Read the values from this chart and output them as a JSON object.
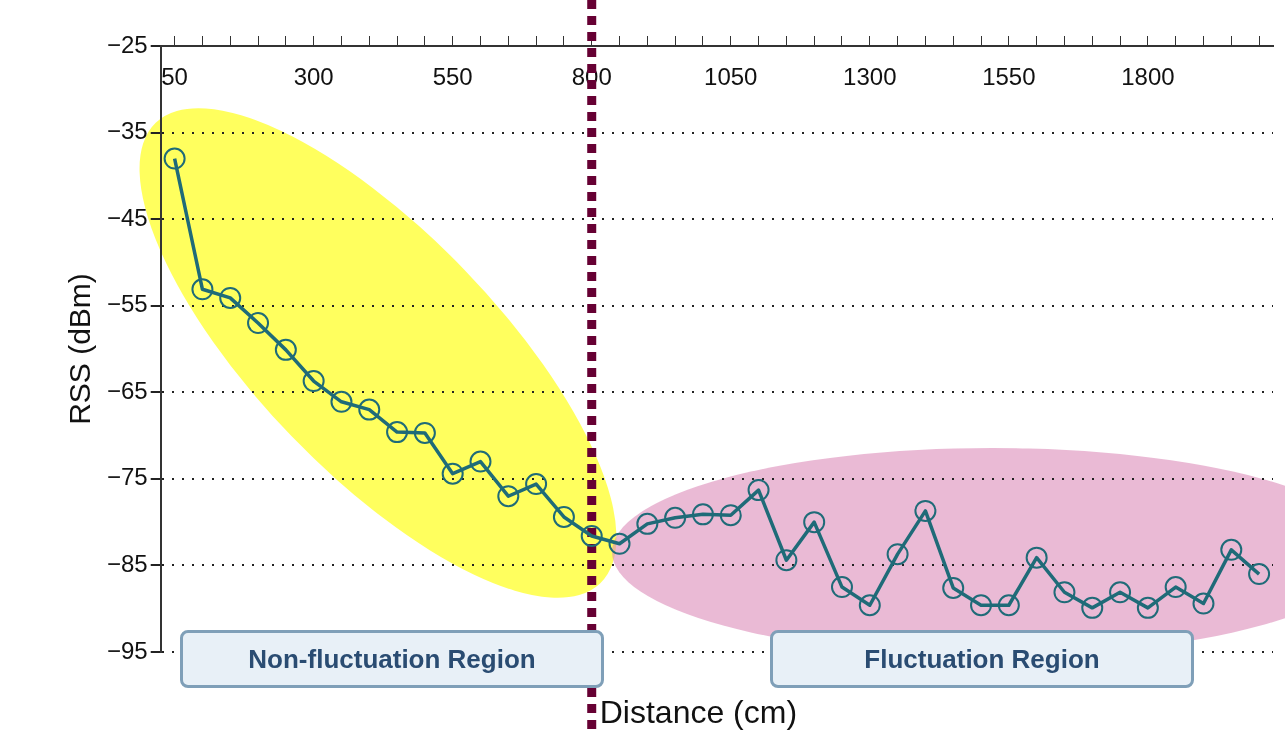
{
  "chart_data": {
    "type": "line",
    "xlabel": "Distance (cm)",
    "ylabel": "RSS (dBm)",
    "categories": [
      "50",
      null,
      null,
      null,
      null,
      "300",
      null,
      null,
      null,
      null,
      "550",
      null,
      null,
      null,
      null,
      "800",
      null,
      null,
      null,
      null,
      "1050",
      null,
      null,
      null,
      null,
      "1300",
      null,
      null,
      null,
      null,
      "1550",
      null,
      null,
      null,
      null,
      "1800",
      null,
      null,
      null,
      null
    ],
    "series": [
      {
        "color": "#1f6b78",
        "values": [
          -38.0,
          -53.1,
          -54.1,
          -57.0,
          -60.1,
          -63.7,
          -66.1,
          -67.0,
          -69.6,
          -69.7,
          -74.4,
          -73.0,
          -77.0,
          -75.6,
          -79.4,
          -81.6,
          -82.5,
          -80.2,
          -79.5,
          -79.1,
          -79.2,
          -76.3,
          -84.4,
          -80.0,
          -87.5,
          -89.6,
          -83.7,
          -78.7,
          -87.6,
          -89.6,
          -89.6,
          -84.1,
          -88.1,
          -89.9,
          -88.1,
          -89.9,
          -87.5,
          -89.4,
          -83.2,
          -86.0
        ]
      }
    ],
    "ylim": [
      -95,
      -25
    ],
    "yticks": [
      -25,
      -35,
      -45,
      -55,
      -65,
      -75,
      -85,
      -95
    ],
    "grid": "y",
    "marker": "circle",
    "line_style": "solid",
    "ref_lines": [
      {
        "axis": "x",
        "value": "800",
        "color": "#660033",
        "line_style": "dashed"
      }
    ],
    "annotations": [
      "Non-fluctuation Region",
      "Fluctuation Region"
    ]
  }
}
